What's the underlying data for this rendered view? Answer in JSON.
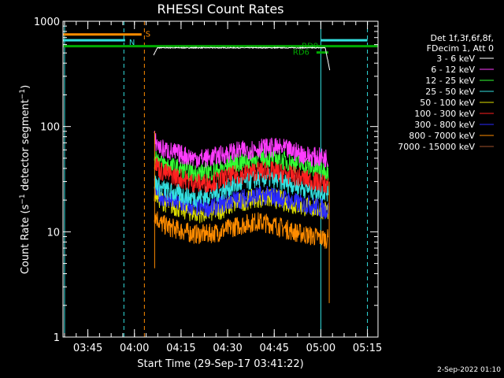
{
  "chart_data": {
    "type": "line",
    "title": "RHESSI Count Rates",
    "xlabel": "Start Time (29-Sep-17 03:41:22)",
    "ylabel_text": "Count Rate (s",
    "ylabel_exp": "−1",
    "ylabel_tail": " detector segment",
    "ylabel_exp2": "−1",
    "ylabel_close": ")",
    "ylog": true,
    "ylim": [
      1,
      1000
    ],
    "xlim_minutes": [
      -4.4,
      97.0
    ],
    "xticks": [
      {
        "label": "03:45",
        "t": 3.6
      },
      {
        "label": "04:00",
        "t": 18.6
      },
      {
        "label": "04:15",
        "t": 33.6
      },
      {
        "label": "04:30",
        "t": 48.6
      },
      {
        "label": "04:45",
        "t": 63.6
      },
      {
        "label": "05:00",
        "t": 78.6
      },
      {
        "label": "05:15",
        "t": 93.6
      }
    ],
    "yticks": [
      {
        "label": "1",
        "v": 1
      },
      {
        "label": "10",
        "v": 10
      },
      {
        "label": "100",
        "v": 100
      },
      {
        "label": "1000",
        "v": 1000
      }
    ],
    "legend": {
      "header": [
        "Det 1f,3f,6f,8f,",
        "FDecim 1, Att 0"
      ],
      "position": "right"
    },
    "series": [
      {
        "name": "3 - 6 keV",
        "color": "#ffffff",
        "values": [
          [
            24.8,
            480
          ],
          [
            26,
            560
          ],
          [
            30,
            560
          ],
          [
            40,
            560
          ],
          [
            50,
            560
          ],
          [
            60,
            560
          ],
          [
            70,
            560
          ],
          [
            78,
            560
          ],
          [
            80,
            560
          ],
          [
            81.5,
            340
          ]
        ]
      },
      {
        "name": "6 - 12 keV",
        "color": "#ff3cff",
        "values": [
          [
            25,
            75
          ],
          [
            27,
            62
          ],
          [
            30,
            58
          ],
          [
            35,
            53
          ],
          [
            38,
            50
          ],
          [
            42,
            50
          ],
          [
            46,
            53
          ],
          [
            50,
            57
          ],
          [
            55,
            60
          ],
          [
            58,
            62
          ],
          [
            62,
            63
          ],
          [
            66,
            62
          ],
          [
            70,
            58
          ],
          [
            75,
            52
          ],
          [
            81,
            50
          ]
        ]
      },
      {
        "name": "12 - 25 keV",
        "color": "#33ff33",
        "values": [
          [
            25,
            55
          ],
          [
            27,
            46
          ],
          [
            30,
            42
          ],
          [
            35,
            38
          ],
          [
            38,
            36
          ],
          [
            42,
            37
          ],
          [
            46,
            39
          ],
          [
            50,
            44
          ],
          [
            55,
            47
          ],
          [
            58,
            50
          ],
          [
            62,
            50
          ],
          [
            66,
            48
          ],
          [
            70,
            45
          ],
          [
            75,
            41
          ],
          [
            81,
            38
          ]
        ]
      },
      {
        "name": "25 - 50 keV",
        "color": "#33e0e0",
        "values": [
          [
            25,
            30
          ],
          [
            27,
            26
          ],
          [
            30,
            24
          ],
          [
            35,
            22
          ],
          [
            38,
            21
          ],
          [
            42,
            22
          ],
          [
            46,
            24
          ],
          [
            50,
            27
          ],
          [
            55,
            30
          ],
          [
            58,
            32
          ],
          [
            62,
            32
          ],
          [
            66,
            30
          ],
          [
            70,
            28
          ],
          [
            75,
            25
          ],
          [
            81,
            24
          ]
        ]
      },
      {
        "name": "50 - 100 keV",
        "color": "#e0e000",
        "values": [
          [
            25,
            24
          ],
          [
            27,
            20
          ],
          [
            30,
            18
          ],
          [
            35,
            16
          ],
          [
            38,
            15
          ],
          [
            42,
            15
          ],
          [
            46,
            16
          ],
          [
            50,
            18
          ],
          [
            55,
            20
          ],
          [
            58,
            21
          ],
          [
            62,
            21
          ],
          [
            66,
            20
          ],
          [
            70,
            18
          ],
          [
            75,
            17
          ],
          [
            81,
            16
          ]
        ]
      },
      {
        "name": "100 - 300 keV",
        "color": "#ff2020",
        "values": [
          [
            25,
            48
          ],
          [
            27,
            38
          ],
          [
            30,
            35
          ],
          [
            35,
            31
          ],
          [
            38,
            29
          ],
          [
            42,
            29
          ],
          [
            46,
            31
          ],
          [
            50,
            34
          ],
          [
            55,
            36
          ],
          [
            58,
            38
          ],
          [
            62,
            38
          ],
          [
            66,
            36
          ],
          [
            70,
            34
          ],
          [
            75,
            31
          ],
          [
            81,
            28
          ]
        ]
      },
      {
        "name": "300 - 800 keV",
        "color": "#2a2aff",
        "values": [
          [
            25,
            26
          ],
          [
            27,
            22
          ],
          [
            30,
            20
          ],
          [
            35,
            18
          ],
          [
            38,
            17
          ],
          [
            42,
            17
          ],
          [
            46,
            18
          ],
          [
            50,
            20
          ],
          [
            55,
            21
          ],
          [
            58,
            22
          ],
          [
            62,
            22
          ],
          [
            66,
            21
          ],
          [
            70,
            19
          ],
          [
            75,
            18
          ],
          [
            81,
            16
          ]
        ]
      },
      {
        "name": "800 - 7000 keV",
        "color": "#ff8c00",
        "values": [
          [
            25,
            15
          ],
          [
            27,
            12
          ],
          [
            30,
            11
          ],
          [
            35,
            10
          ],
          [
            38,
            9.5
          ],
          [
            42,
            9.5
          ],
          [
            46,
            10
          ],
          [
            50,
            11
          ],
          [
            55,
            12
          ],
          [
            58,
            12.5
          ],
          [
            62,
            12
          ],
          [
            66,
            11
          ],
          [
            70,
            10
          ],
          [
            75,
            9.2
          ],
          [
            81,
            8.5
          ]
        ]
      },
      {
        "name": "7000 - 15000 keV",
        "color": "#a0522d",
        "values": []
      }
    ],
    "markers": {
      "S": {
        "label": "S",
        "color": "#ff8c00",
        "t0": -4.4,
        "t1": 20.9,
        "v": 750
      },
      "N": {
        "label": "N",
        "color": "#33e0e0",
        "t0": -4.4,
        "t1": 15.6,
        "v": 660
      },
      "N2": {
        "color": "#33e0e0",
        "t0": 78.6,
        "t1": 93.6,
        "v": 660
      },
      "RD9": {
        "label": "RD9",
        "color": "#00aa00",
        "t0": 75.5,
        "t1": 79.5,
        "v": 570
      },
      "RD6": {
        "label": "RD6",
        "color": "#00aa00",
        "t0": 77.2,
        "t1": 81.0,
        "v": 505
      },
      "green_band": {
        "color": "#00aa00",
        "t0": -4.4,
        "t1": 97.0,
        "v": 580
      }
    },
    "vlines": [
      {
        "t": -3.9,
        "color": "#33e0e0",
        "style": "solid"
      },
      {
        "t": 15.2,
        "color": "#33e0e0",
        "style": "dashed"
      },
      {
        "t": 21.8,
        "color": "#ff8c00",
        "style": "dashed"
      },
      {
        "t": 78.6,
        "color": "#33e0e0",
        "style": "solid"
      },
      {
        "t": 93.6,
        "color": "#33e0e0",
        "style": "dashed"
      }
    ]
  },
  "footer": {
    "timestamp": "2-Sep-2022 01:10"
  }
}
